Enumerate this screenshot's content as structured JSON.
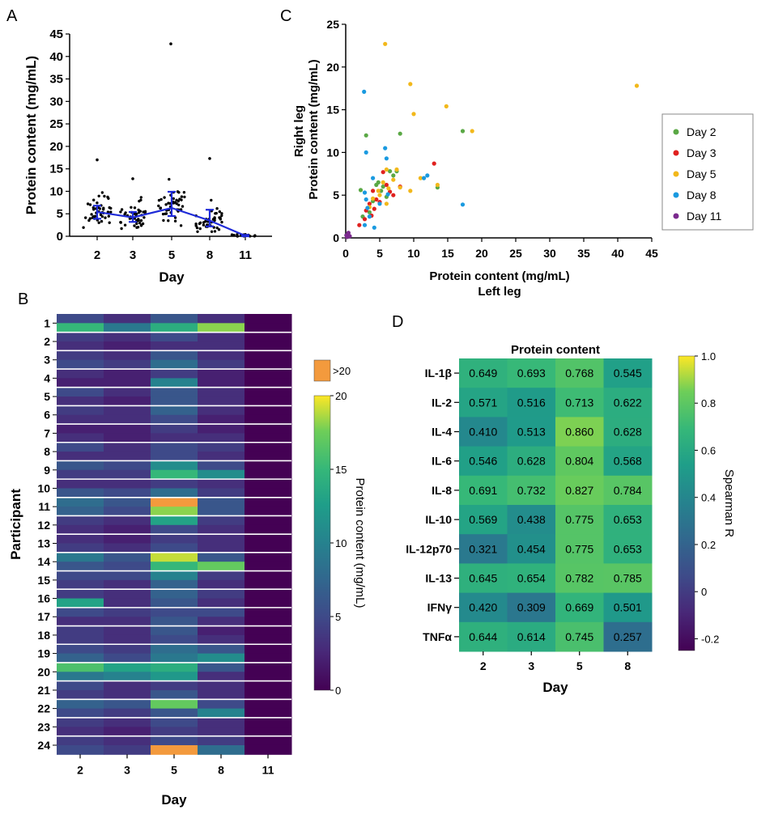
{
  "panels": {
    "A": "A",
    "B": "B",
    "C": "C",
    "D": "D"
  },
  "chart_data": [
    {
      "panel": "A",
      "type": "scatter",
      "subtype": "dot-strip with mean and error bars",
      "xlabel": "Day",
      "ylabel": "Protein content (mg/mL)",
      "categories": [
        "2",
        "3",
        "5",
        "8",
        "11"
      ],
      "ylim": [
        0,
        45
      ],
      "yticks": [
        0,
        5,
        10,
        15,
        20,
        25,
        30,
        35,
        40,
        45
      ],
      "series": [
        {
          "name": "mean",
          "values": [
            5.4,
            4.2,
            6.3,
            3.5,
            0.1
          ]
        },
        {
          "name": "error_low",
          "values": [
            3.9,
            3.2,
            4.5,
            2.2,
            0.0
          ]
        },
        {
          "name": "error_high",
          "values": [
            6.8,
            5.4,
            9.9,
            5.9,
            0.3
          ]
        },
        {
          "name": "max_point",
          "values": [
            17.0,
            12.8,
            42.8,
            17.3,
            0.4
          ]
        }
      ]
    },
    {
      "panel": "C",
      "type": "scatter",
      "xlabel": "Protein content (mg/mL)",
      "xlabel2": "Left leg",
      "ylabel": "Right leg",
      "ylabel2": "Protein content (mg/mL)",
      "xlim": [
        0,
        45
      ],
      "ylim": [
        0,
        25
      ],
      "xticks": [
        0,
        5,
        10,
        15,
        20,
        25,
        30,
        35,
        40,
        45
      ],
      "yticks": [
        0,
        5,
        10,
        15,
        20,
        25
      ],
      "legend": "right",
      "series": [
        {
          "name": "Day 2",
          "color": "#5aa845",
          "points": [
            [
              3,
              12
            ],
            [
              8,
              12.2
            ],
            [
              17.2,
              12.5
            ],
            [
              2.2,
              5.6
            ],
            [
              4,
              4.3
            ],
            [
              5.5,
              6
            ],
            [
              6.5,
              7.8
            ],
            [
              7.5,
              7.8
            ],
            [
              3.5,
              3
            ],
            [
              4.8,
              6.5
            ],
            [
              6,
              4.8
            ],
            [
              13.5,
              5.9
            ],
            [
              2.5,
              2.5
            ],
            [
              7,
              7.3
            ],
            [
              5.2,
              5.5
            ],
            [
              4.5,
              6.2
            ]
          ]
        },
        {
          "name": "Day 3",
          "color": "#e0211f",
          "points": [
            [
              13,
              8.7
            ],
            [
              8,
              6
            ],
            [
              4.5,
              4.5
            ],
            [
              3,
              3.2
            ],
            [
              5.5,
              7.7
            ],
            [
              7,
              5
            ],
            [
              2.8,
              2.2
            ],
            [
              4,
              5.5
            ],
            [
              6,
              6.2
            ],
            [
              3.5,
              4
            ],
            [
              5,
              4.2
            ],
            [
              6.5,
              5.4
            ],
            [
              4.2,
              3.4
            ],
            [
              2,
              1.5
            ],
            [
              3.8,
              2.6
            ]
          ]
        },
        {
          "name": "Day 5",
          "color": "#f2b81b",
          "points": [
            [
              5.8,
              22.7
            ],
            [
              9.5,
              18
            ],
            [
              42.8,
              17.8
            ],
            [
              14.8,
              15.4
            ],
            [
              10,
              14.5
            ],
            [
              18.6,
              12.5
            ],
            [
              13.5,
              6.2
            ],
            [
              9.5,
              5.5
            ],
            [
              11,
              7
            ],
            [
              6,
              8
            ],
            [
              7.5,
              8
            ],
            [
              5.5,
              6.5
            ],
            [
              4.8,
              5.5
            ],
            [
              4,
              4.6
            ],
            [
              6,
              4
            ],
            [
              7,
              6.8
            ],
            [
              5,
              5
            ],
            [
              3.5,
              3.6
            ],
            [
              6.3,
              5.8
            ],
            [
              8,
              5.9
            ]
          ]
        },
        {
          "name": "Day 8",
          "color": "#1a9ae0",
          "points": [
            [
              2.7,
              17.1
            ],
            [
              3,
              10
            ],
            [
              5.8,
              10.5
            ],
            [
              6,
              9.3
            ],
            [
              17.2,
              3.9
            ],
            [
              12,
              7.3
            ],
            [
              11.5,
              7
            ],
            [
              4,
              7
            ],
            [
              3,
              4.5
            ],
            [
              5,
              4
            ],
            [
              3.5,
              2.5
            ],
            [
              2.8,
              1.5
            ],
            [
              4.2,
              1.2
            ],
            [
              3.2,
              3.5
            ],
            [
              6.2,
              5.1
            ],
            [
              2.8,
              5.3
            ]
          ]
        },
        {
          "name": "Day 11",
          "color": "#7b2a8e",
          "points": [
            [
              0.2,
              0.1
            ],
            [
              0.4,
              0.6
            ],
            [
              0.1,
              0.3
            ],
            [
              0.6,
              0.2
            ],
            [
              0.3,
              0.4
            ]
          ]
        }
      ]
    },
    {
      "panel": "B",
      "type": "heatmap",
      "xlabel": "Day",
      "ylabel": "Participant",
      "categories": [
        "2",
        "3",
        "5",
        "8",
        "11"
      ],
      "participants": [
        "1",
        "2",
        "3",
        "4",
        "5",
        "6",
        "7",
        "8",
        "9",
        "10",
        "11",
        "12",
        "13",
        "14",
        "15",
        "16",
        "17",
        "18",
        "19",
        "20",
        "21",
        "22",
        "23",
        "24"
      ],
      "colorbar_label": "Protein content (mg/mL)",
      "colorbar_ticks": [
        0,
        5,
        10,
        15,
        20
      ],
      "overflow_label": ">20",
      "overflow_color": "#f39a3d",
      "note": "Two rows (left and right leg) per participant; values in mg/mL, 99 = >20",
      "values": [
        [
          5,
          3,
          6,
          3,
          0
        ],
        [
          15,
          9,
          14,
          18,
          0
        ],
        [
          4,
          3,
          5,
          3,
          0
        ],
        [
          3,
          2,
          3,
          3,
          0
        ],
        [
          4,
          3,
          6,
          3,
          0
        ],
        [
          5,
          4,
          8,
          4,
          0
        ],
        [
          3,
          2,
          4,
          2,
          0
        ],
        [
          2,
          2,
          10,
          2,
          0
        ],
        [
          5,
          3,
          6,
          3,
          0
        ],
        [
          3,
          2,
          6,
          3,
          0
        ],
        [
          4,
          3,
          7,
          3,
          0
        ],
        [
          3,
          3,
          5,
          2,
          0
        ],
        [
          2,
          2,
          4,
          2,
          0
        ],
        [
          3,
          2,
          3,
          3,
          0
        ],
        [
          5,
          3,
          5,
          4,
          0
        ],
        [
          3,
          3,
          5,
          3,
          0
        ],
        [
          6,
          5,
          11,
          5,
          0
        ],
        [
          4,
          4,
          15,
          11,
          0
        ],
        [
          3,
          3,
          4,
          3,
          0
        ],
        [
          6,
          5,
          8,
          4,
          0
        ],
        [
          8,
          6,
          99,
          6,
          0
        ],
        [
          7,
          5,
          18,
          6,
          0
        ],
        [
          4,
          3,
          13,
          4,
          0
        ],
        [
          3,
          2,
          5,
          3,
          0
        ],
        [
          3,
          2,
          4,
          3,
          0
        ],
        [
          4,
          3,
          5,
          3,
          0
        ],
        [
          9,
          6,
          19,
          6,
          0
        ],
        [
          6,
          5,
          15,
          17,
          0
        ],
        [
          5,
          5,
          10,
          4,
          0
        ],
        [
          4,
          3,
          7,
          3,
          0
        ],
        [
          4,
          3,
          7,
          4,
          0
        ],
        [
          13,
          3,
          6,
          3,
          0
        ],
        [
          5,
          4,
          5,
          5,
          0
        ],
        [
          3,
          3,
          6,
          3,
          0
        ],
        [
          4,
          3,
          6,
          2,
          0
        ],
        [
          4,
          3,
          5,
          3,
          0
        ],
        [
          5,
          4,
          8,
          6,
          0
        ],
        [
          7,
          5,
          9,
          11,
          0
        ],
        [
          16,
          13,
          14,
          6,
          0
        ],
        [
          9,
          10,
          12,
          3,
          0
        ],
        [
          5,
          3,
          4,
          3,
          0
        ],
        [
          4,
          3,
          6,
          3,
          0
        ],
        [
          7,
          6,
          17,
          5,
          0
        ],
        [
          5,
          4,
          6,
          10,
          0
        ],
        [
          4,
          3,
          5,
          3,
          0
        ],
        [
          3,
          2,
          4,
          3,
          0
        ],
        [
          4,
          3,
          5,
          4,
          0
        ],
        [
          5,
          4,
          99,
          8,
          0
        ]
      ]
    },
    {
      "panel": "D",
      "type": "heatmap",
      "title": "Protein content",
      "xlabel": "Day",
      "categories": [
        "2",
        "3",
        "5",
        "8"
      ],
      "rows": [
        "IL-1β",
        "IL-2",
        "IL-4",
        "IL-6",
        "IL-8",
        "IL-10",
        "IL-12p70",
        "IL-13",
        "IFNγ",
        "TNFα"
      ],
      "values": [
        [
          "0.649",
          "0.693",
          "0.768",
          "0.545"
        ],
        [
          "0.571",
          "0.516",
          "0.713",
          "0.622"
        ],
        [
          "0.410",
          "0.513",
          "0.860",
          "0.628"
        ],
        [
          "0.546",
          "0.628",
          "0.804",
          "0.568"
        ],
        [
          "0.691",
          "0.732",
          "0.827",
          "0.784"
        ],
        [
          "0.569",
          "0.438",
          "0.775",
          "0.653"
        ],
        [
          "0.321",
          "0.454",
          "0.775",
          "0.653"
        ],
        [
          "0.645",
          "0.654",
          "0.782",
          "0.785"
        ],
        [
          "0.420",
          "0.309",
          "0.669",
          "0.501"
        ],
        [
          "0.644",
          "0.614",
          "0.745",
          "0.257"
        ]
      ],
      "colorbar_label": "Spearman R",
      "colorbar_range": [
        -0.25,
        1.0
      ],
      "colorbar_ticks": [
        "1.0",
        "0.8",
        "0.6",
        "0.4",
        "0.2",
        "0",
        "-0.2"
      ]
    }
  ]
}
